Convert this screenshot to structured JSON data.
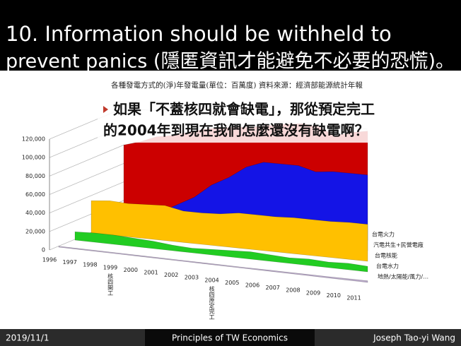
{
  "title": {
    "lines": [
      "10. Information should be withheld to",
      "prevent panics (隱匿資訊才能避免不必要的恐慌)。"
    ]
  },
  "chart_data": {
    "type": "area",
    "title": "各種發電方式的(淨)年發電量(單位：百萬度) 資料來源：經濟部能源統計年報",
    "categories": [
      "1996",
      "1997",
      "1998",
      "1999",
      "2000",
      "2001",
      "2002",
      "2003",
      "2004",
      "2005",
      "2006",
      "2007",
      "2008",
      "2009",
      "2010",
      "2011"
    ],
    "series": [
      {
        "name": "台電火力",
        "color": "#cc0000",
        "values": [
          80000,
          85000,
          92000,
          95000,
          100000,
          105000,
          108000,
          110000,
          112000,
          115000,
          118000,
          120000,
          118000,
          110000,
          115000,
          118000
        ]
      },
      {
        "name": "汽電共生+民營電廠",
        "color": "#1414e6",
        "values": [
          5000,
          8000,
          12000,
          20000,
          30000,
          40000,
          55000,
          65000,
          78000,
          85000,
          85000,
          85000,
          80000,
          82000,
          82000,
          82000
        ]
      },
      {
        "name": "台電核能",
        "color": "#ffc000",
        "values": [
          35000,
          37000,
          36000,
          37000,
          38000,
          34000,
          34000,
          35000,
          38000,
          38000,
          38000,
          39000,
          39000,
          39000,
          40000,
          40000
        ]
      },
      {
        "name": "台電水力",
        "color": "#22cc22",
        "values": [
          9000,
          10000,
          10000,
          9000,
          8000,
          6000,
          5000,
          6000,
          7000,
          8000,
          7000,
          6000,
          7000,
          6000,
          7000,
          6000
        ]
      },
      {
        "name": "地熱/太陽能/風力/…",
        "color": "#b8a8c8",
        "values": [
          1000,
          1000,
          1000,
          1000,
          1000,
          1000,
          1000,
          1000,
          1000,
          1000,
          1200,
          1200,
          1300,
          1400,
          1600,
          1800
        ]
      }
    ],
    "ylim": [
      0,
      120000
    ],
    "yticks": [
      0,
      {
        "value": 20000,
        "label": "20,000"
      },
      {
        "value": 40000,
        "label": "40,000"
      },
      {
        "value": 60000,
        "label": "60,000"
      },
      {
        "value": 80000,
        "label": "80,000"
      },
      {
        "value": 100000,
        "label": "100,000"
      },
      {
        "value": 120000,
        "label": "120,000"
      }
    ],
    "grid": true,
    "annotations": [
      {
        "x": "1999",
        "label": "核四開工"
      },
      {
        "x": "2004",
        "label": "核四原定完工"
      }
    ]
  },
  "callout": {
    "lines": [
      "如果「不蓋核四就會缺電」，那從預定完工",
      "的2004年到現在我們怎麼還沒有缺電啊？"
    ]
  },
  "footer": {
    "date": "2019/11/1",
    "course": "Principles of TW Economics",
    "author": "Joseph Tao-yi Wang"
  }
}
